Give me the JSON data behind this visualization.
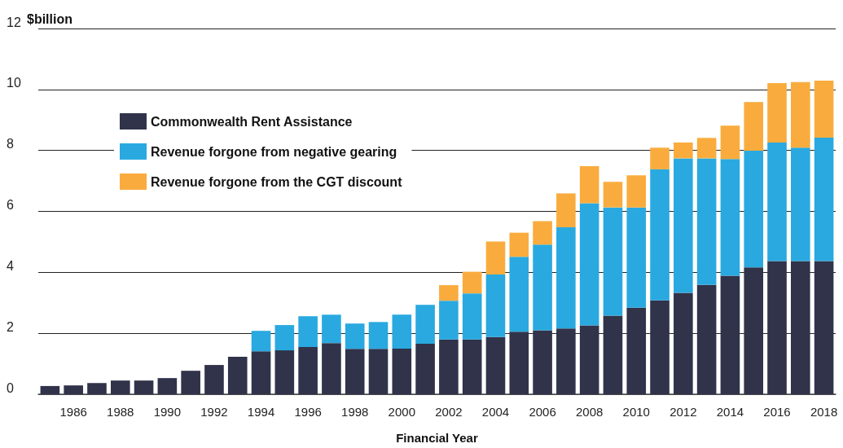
{
  "chart_data": {
    "type": "bar",
    "stacked": true,
    "ylabel": "$billion",
    "xlabel": "Financial Year",
    "categories": [
      null,
      "1986",
      null,
      "1988",
      null,
      "1990",
      null,
      "1992",
      null,
      "1994",
      null,
      "1996",
      null,
      "1998",
      null,
      "2000",
      null,
      "2002",
      null,
      "2004",
      null,
      "2006",
      null,
      "2008",
      null,
      "2010",
      null,
      "2012",
      null,
      "2014",
      null,
      "2016",
      null,
      "2018"
    ],
    "series": [
      {
        "name": "Commonwealth Rent Assistance",
        "color": "#30334a",
        "values": [
          0.27,
          0.29,
          0.37,
          0.45,
          0.45,
          0.53,
          0.77,
          0.96,
          1.23,
          1.41,
          1.44,
          1.55,
          1.68,
          1.49,
          1.49,
          1.5,
          1.66,
          1.8,
          1.8,
          1.88,
          2.05,
          2.1,
          2.16,
          2.26,
          2.58,
          2.84,
          3.08,
          3.33,
          3.59,
          3.89,
          4.16,
          4.37,
          4.37,
          4.37
        ]
      },
      {
        "name": "Revenue forgone from negative gearing",
        "color": "#29a9e0",
        "values": [
          null,
          null,
          null,
          null,
          null,
          null,
          null,
          null,
          null,
          0.67,
          0.83,
          1.01,
          0.93,
          0.83,
          0.88,
          1.11,
          1.27,
          1.27,
          1.51,
          2.05,
          2.46,
          2.81,
          3.32,
          4.01,
          3.55,
          3.29,
          4.3,
          4.41,
          4.15,
          3.83,
          3.83,
          3.89,
          3.72,
          4.05
        ]
      },
      {
        "name": "Revenue forgone from the CGT discount",
        "color": "#f9ac3d",
        "values": [
          null,
          null,
          null,
          null,
          null,
          null,
          null,
          null,
          null,
          null,
          null,
          null,
          null,
          null,
          null,
          null,
          null,
          0.51,
          0.71,
          1.08,
          0.79,
          0.77,
          1.11,
          1.21,
          0.84,
          1.05,
          0.71,
          0.52,
          0.67,
          1.09,
          1.6,
          1.95,
          2.15,
          1.87
        ]
      }
    ],
    "ylim": [
      0,
      12
    ],
    "yticks": [
      0,
      2,
      4,
      6,
      8,
      10,
      12
    ],
    "grid": "y",
    "legend": "top left"
  }
}
